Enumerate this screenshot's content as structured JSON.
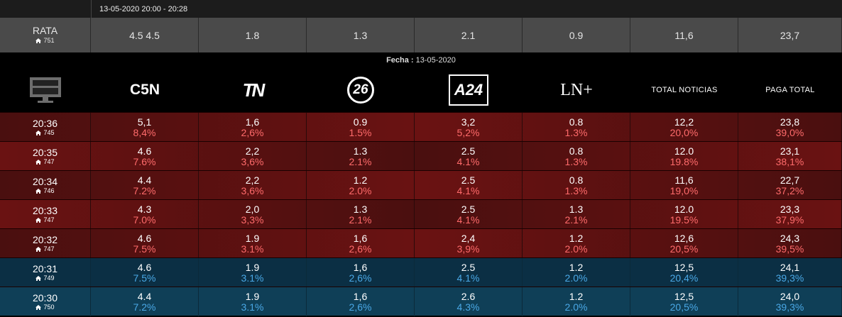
{
  "top": {
    "range": "13-05-2020 20:00 - 20:28"
  },
  "rata": {
    "label": "RATA",
    "homes": "751",
    "values": [
      "4.5 4.5",
      "1.8",
      "1.3",
      "2.1",
      "0.9",
      "11,6",
      "23,7"
    ]
  },
  "fecha": {
    "label": "Fecha :",
    "date": "13-05-2020"
  },
  "header": {
    "channels": [
      "C5N",
      "TN",
      "26",
      "A24",
      "LN+",
      "TOTAL NOTICIAS",
      "PAGA TOTAL"
    ]
  },
  "rows": [
    {
      "time": "20:36",
      "homes": "745",
      "theme": "red",
      "cols": [
        [
          "5,1",
          "8,4%"
        ],
        [
          "1,6",
          "2,6%"
        ],
        [
          "0.9",
          "1.5%"
        ],
        [
          "3,2",
          "5,2%"
        ],
        [
          "0.8",
          "1.3%"
        ],
        [
          "12,2",
          "20,0%"
        ],
        [
          "23,8",
          "39,0%"
        ]
      ]
    },
    {
      "time": "20:35",
      "homes": "747",
      "theme": "red",
      "cols": [
        [
          "4.6",
          "7.6%"
        ],
        [
          "2,2",
          "3,6%"
        ],
        [
          "1.3",
          "2.1%"
        ],
        [
          "2.5",
          "4.1%"
        ],
        [
          "0.8",
          "1.3%"
        ],
        [
          "12.0",
          "19.8%"
        ],
        [
          "23,1",
          "38,1%"
        ]
      ]
    },
    {
      "time": "20:34",
      "homes": "746",
      "theme": "red",
      "cols": [
        [
          "4.4",
          "7.2%"
        ],
        [
          "2,2",
          "3,6%"
        ],
        [
          "1.2",
          "2.0%"
        ],
        [
          "2.5",
          "4.1%"
        ],
        [
          "0.8",
          "1.3%"
        ],
        [
          "11,6",
          "19,0%"
        ],
        [
          "22,7",
          "37,2%"
        ]
      ]
    },
    {
      "time": "20:33",
      "homes": "747",
      "theme": "red",
      "cols": [
        [
          "4.3",
          "7.0%"
        ],
        [
          "2,0",
          "3,3%"
        ],
        [
          "1.3",
          "2.1%"
        ],
        [
          "2.5",
          "4.1%"
        ],
        [
          "1.3",
          "2.1%"
        ],
        [
          "12.0",
          "19.5%"
        ],
        [
          "23,3",
          "37,9%"
        ]
      ]
    },
    {
      "time": "20:32",
      "homes": "747",
      "theme": "red",
      "cols": [
        [
          "4.6",
          "7.5%"
        ],
        [
          "1.9",
          "3.1%"
        ],
        [
          "1,6",
          "2,6%"
        ],
        [
          "2,4",
          "3,9%"
        ],
        [
          "1.2",
          "2.0%"
        ],
        [
          "12,6",
          "20,5%"
        ],
        [
          "24,3",
          "39,5%"
        ]
      ]
    },
    {
      "time": "20:31",
      "homes": "749",
      "theme": "blue",
      "cols": [
        [
          "4.6",
          "7.5%"
        ],
        [
          "1.9",
          "3.1%"
        ],
        [
          "1,6",
          "2,6%"
        ],
        [
          "2.5",
          "4.1%"
        ],
        [
          "1.2",
          "2.0%"
        ],
        [
          "12,5",
          "20,4%"
        ],
        [
          "24,1",
          "39,3%"
        ]
      ]
    },
    {
      "time": "20:30",
      "homes": "750",
      "theme": "blue",
      "cols": [
        [
          "4.4",
          "7.2%"
        ],
        [
          "1.9",
          "3.1%"
        ],
        [
          "1,6",
          "2,6%"
        ],
        [
          "2.6",
          "4.3%"
        ],
        [
          "1.2",
          "2.0%"
        ],
        [
          "12,5",
          "20,5%"
        ],
        [
          "24,0",
          "39,3%"
        ]
      ]
    }
  ],
  "colors": {
    "rowRedA": "#4a0f0f",
    "rowRedB": "#6a1212",
    "rowBlueA": "#0f3f57",
    "rowBlueB": "#0b2f44",
    "pctRed": "#ff6b6b",
    "pctBlue": "#4aa8e6"
  },
  "icons": {
    "tv": "monitor-icon",
    "home": "home-icon"
  }
}
